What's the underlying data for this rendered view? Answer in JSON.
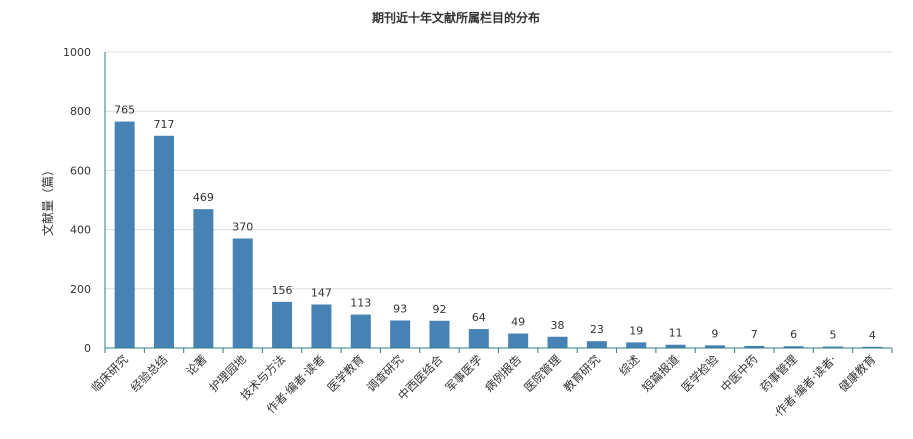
{
  "chart_data": {
    "type": "bar",
    "title": "期刊近十年文献所属栏目的分布",
    "xlabel": "",
    "ylabel": "文献量（篇）",
    "ylim": [
      0,
      1000
    ],
    "yticks": [
      0,
      200,
      400,
      600,
      800,
      1000
    ],
    "grid": true,
    "legend": "none",
    "bar_color": "#4682b4",
    "categories": [
      "临床研究",
      "经验总结",
      "论著",
      "护理园地",
      "技术与方法",
      "作者·编者·读者",
      "医学教育",
      "调查研究",
      "中西医结合",
      "军事医学",
      "病例报告",
      "医院管理",
      "教育研究",
      "综述",
      "短篇报道",
      "医学检验",
      "中医中药",
      "药事管理",
      "·作者·编者·读者·",
      "健康教育"
    ],
    "values": [
      765,
      717,
      469,
      370,
      156,
      147,
      113,
      93,
      92,
      64,
      49,
      38,
      23,
      19,
      11,
      9,
      7,
      6,
      5,
      4
    ]
  }
}
